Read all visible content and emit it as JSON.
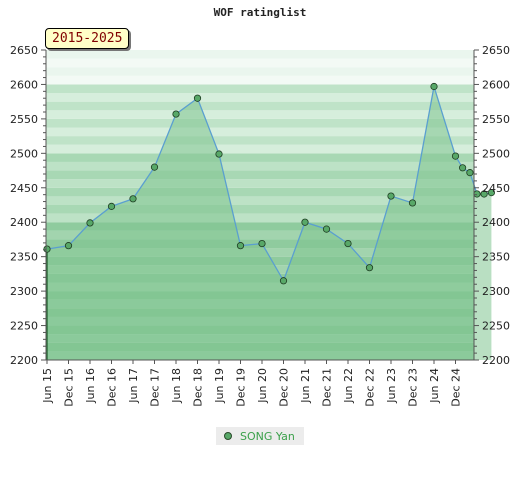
{
  "chart_data": {
    "type": "area",
    "title": "WOF ratinglist",
    "period_label": "2015-2025",
    "ylim": [
      2200,
      2650
    ],
    "yticks": [
      2200,
      2250,
      2300,
      2350,
      2400,
      2450,
      2500,
      2550,
      2600,
      2650
    ],
    "categories": [
      "Jun 15",
      "Dec 15",
      "Jun 16",
      "Dec 16",
      "Jun 17",
      "Dec 17",
      "Jun 18",
      "Dec 18",
      "Jun 19",
      "Dec 19",
      "Jun 20",
      "Dec 20",
      "Jun 21",
      "Dec 21",
      "Jun 22",
      "Dec 22",
      "Jun 23",
      "Dec 23",
      "Jun 24",
      "Dec 24"
    ],
    "legend_position": "bottom-center",
    "grid": false,
    "series": [
      {
        "name": "SONG Yan",
        "color": "#5a9fd0",
        "fill": "#7fc490",
        "marker_color": "#58a868",
        "points": [
          {
            "x": 0,
            "y": 2361
          },
          {
            "x": 1,
            "y": 2366
          },
          {
            "x": 2,
            "y": 2399
          },
          {
            "x": 3,
            "y": 2423
          },
          {
            "x": 4,
            "y": 2434
          },
          {
            "x": 5,
            "y": 2480
          },
          {
            "x": 6,
            "y": 2557
          },
          {
            "x": 7,
            "y": 2580
          },
          {
            "x": 8,
            "y": 2499
          },
          {
            "x": 9,
            "y": 2366
          },
          {
            "x": 10,
            "y": 2369
          },
          {
            "x": 11,
            "y": 2315
          },
          {
            "x": 12,
            "y": 2400
          },
          {
            "x": 13,
            "y": 2390
          },
          {
            "x": 14,
            "y": 2369
          },
          {
            "x": 15,
            "y": 2334
          },
          {
            "x": 16,
            "y": 2438
          },
          {
            "x": 17,
            "y": 2428
          },
          {
            "x": 18,
            "y": 2597
          },
          {
            "x": 19,
            "y": 2496
          },
          {
            "x": 19.33,
            "y": 2479
          },
          {
            "x": 19.67,
            "y": 2472
          },
          {
            "x": 20,
            "y": 2441
          },
          {
            "x": 20.33,
            "y": 2441
          },
          {
            "x": 20.67,
            "y": 2443
          }
        ]
      }
    ]
  }
}
